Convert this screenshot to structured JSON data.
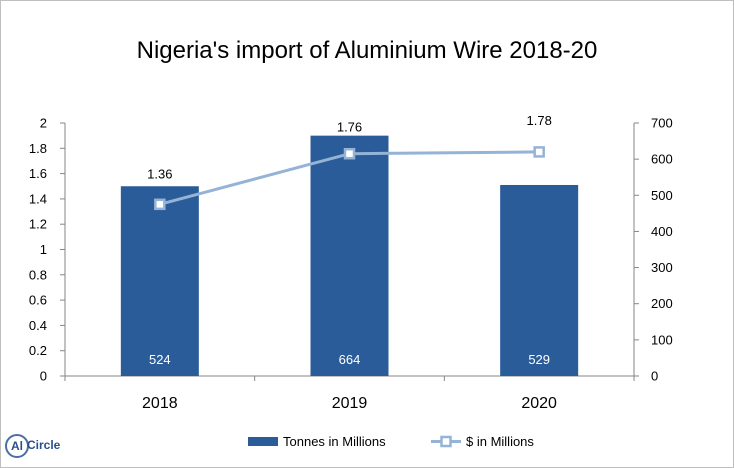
{
  "chart_data": {
    "type": "bar",
    "title": "Nigeria's import of Aluminium Wire 2018-20",
    "categories": [
      "2018",
      "2019",
      "2020"
    ],
    "series": [
      {
        "name": "Tonnes in Millions",
        "kind": "bar",
        "axis": "left",
        "values": [
          1.5,
          1.9,
          1.51
        ],
        "labels": [
          "524",
          "664",
          "529"
        ],
        "color": "#2a5c9a"
      },
      {
        "name": "$ in Millions",
        "kind": "line",
        "axis": "right",
        "values": [
          475,
          615,
          620
        ],
        "labels": [
          "1.36",
          "1.76",
          "1.78"
        ],
        "color": "#95b3d7"
      }
    ],
    "y_left": {
      "min": 0,
      "max": 2,
      "step": 0.2,
      "ticks": [
        "0",
        "0.2",
        "0.4",
        "0.6",
        "0.8",
        "1",
        "1.2",
        "1.4",
        "1.6",
        "1.8",
        "2"
      ]
    },
    "y_right": {
      "min": 0,
      "max": 700,
      "step": 100,
      "ticks": [
        "0",
        "100",
        "200",
        "300",
        "400",
        "500",
        "600",
        "700"
      ]
    },
    "grid": false,
    "legend_position": "bottom"
  },
  "logo": {
    "badge": "Al",
    "word": "Circle"
  }
}
